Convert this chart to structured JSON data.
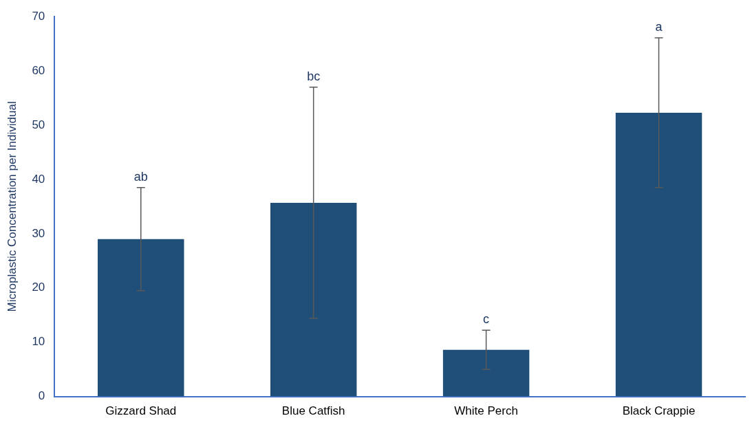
{
  "chart_data": {
    "type": "bar",
    "ylabel": "Microplastic Concentration per Individual",
    "categories": [
      "Gizzard Shad",
      "Blue Catfish",
      "White Perch",
      "Black Crappie"
    ],
    "values": [
      29,
      35.7,
      8.6,
      52.3
    ],
    "errors": [
      9.5,
      21.3,
      3.6,
      13.8
    ],
    "color": "#1f4e79",
    "ylim": [
      0,
      70
    ],
    "yticks": [
      0,
      10,
      20,
      30,
      40,
      50,
      60,
      70
    ],
    "grid": false,
    "legend": false,
    "annotations": [
      {
        "text": "ab",
        "x": "Gizzard Shad",
        "y": 38.5
      },
      {
        "text": "bc",
        "x": "Blue Catfish",
        "y": 57
      },
      {
        "text": "c",
        "x": "White Perch",
        "y": 12.2
      },
      {
        "text": "a",
        "x": "Black Crappie",
        "y": 66.1
      }
    ]
  }
}
